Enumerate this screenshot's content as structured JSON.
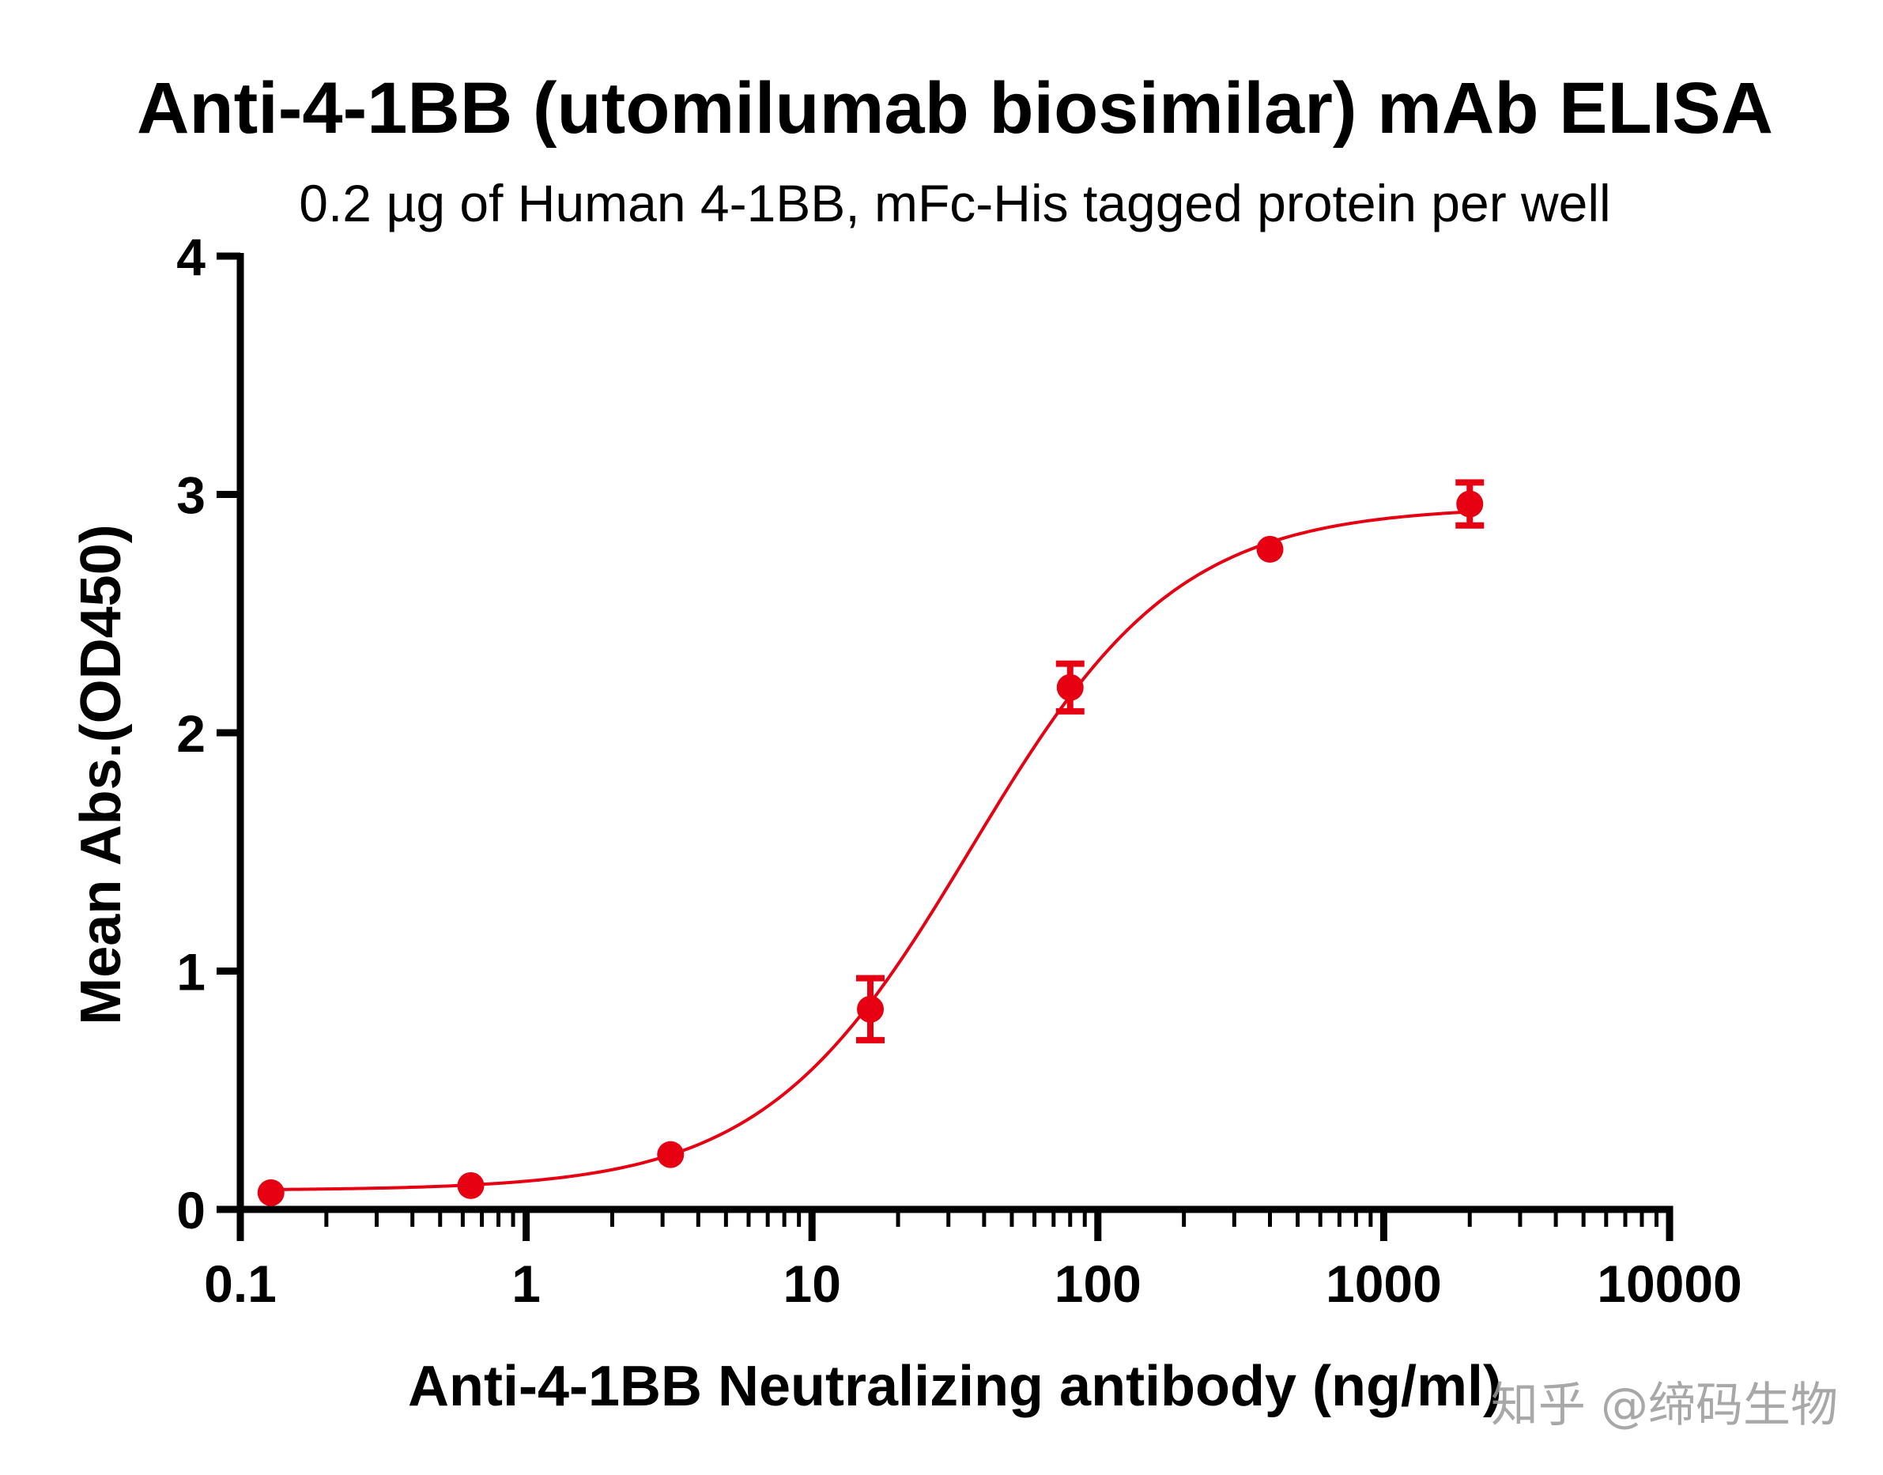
{
  "chart_data": {
    "type": "scatter",
    "title": "Anti-4-1BB (utomilumab biosimilar) mAb ELISA",
    "subtitle": "0.2 µg of Human 4-1BB, mFc-His tagged protein per well",
    "xlabel": "Anti-4-1BB Neutralizing antibody (ng/ml)",
    "ylabel": "Mean Abs.(OD450)",
    "x_scale": "log",
    "xlim": [
      0.1,
      10000
    ],
    "ylim": [
      0,
      4
    ],
    "x_ticks": [
      0.1,
      1,
      10,
      100,
      1000,
      10000
    ],
    "x_tick_labels": [
      "0.1",
      "1",
      "10",
      "100",
      "1000",
      "10000"
    ],
    "y_ticks": [
      0,
      1,
      2,
      3,
      4
    ],
    "y_tick_labels": [
      "0",
      "1",
      "2",
      "3",
      "4"
    ],
    "grid": false,
    "series": [
      {
        "name": "Anti-4-1BB (utomilumab biosimilar)",
        "color": "#e60012",
        "x": [
          0.128,
          0.64,
          3.2,
          16,
          80,
          400,
          2000
        ],
        "y": [
          0.07,
          0.1,
          0.23,
          0.84,
          2.19,
          2.77,
          2.96
        ],
        "error": [
          0.01,
          0.01,
          0.02,
          0.13,
          0.1,
          0.02,
          0.09
        ]
      }
    ],
    "fit": {
      "model": "4PL",
      "bottom": 0.08,
      "top": 2.95,
      "ec50": 36,
      "hill": 1.2,
      "color": "#e60012"
    }
  },
  "watermark": "知乎 @缔码生物"
}
